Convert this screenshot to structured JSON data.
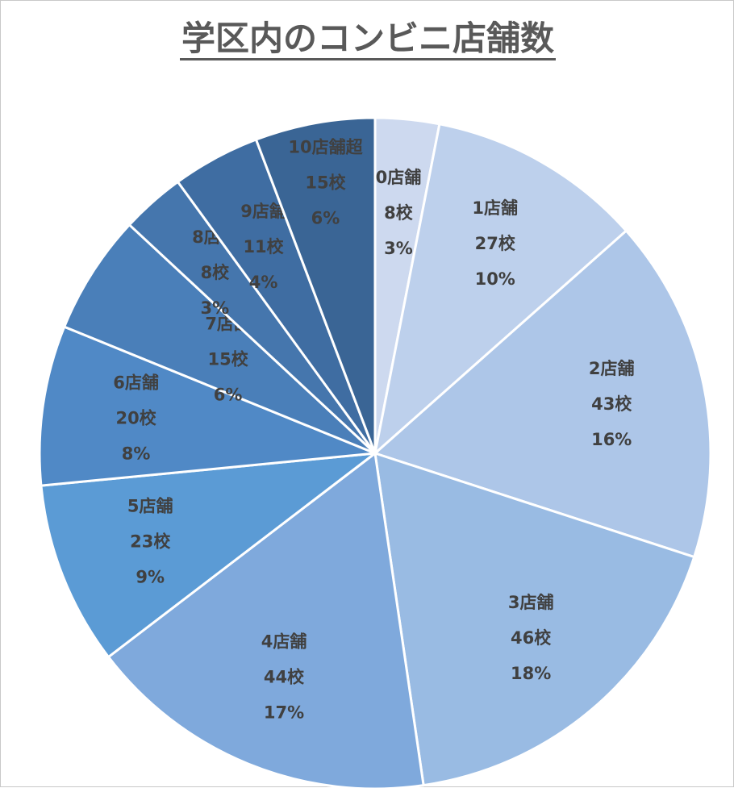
{
  "chart_data": {
    "type": "pie",
    "title": "学区内のコンビニ店舗数",
    "categories": [
      "0店舗",
      "1店舗",
      "2店舗",
      "3店舗",
      "4店舗",
      "5店舗",
      "6店舗",
      "7店舗",
      "8店舗",
      "9店舗",
      "10店舗超"
    ],
    "values": [
      8,
      27,
      43,
      46,
      44,
      23,
      20,
      15,
      8,
      11,
      15
    ],
    "value_labels": [
      "8校",
      "27校",
      "43校",
      "46校",
      "44校",
      "23校",
      "20校",
      "15校",
      "8校",
      "11校",
      "15校"
    ],
    "percent_labels": [
      "3%",
      "10%",
      "16%",
      "18%",
      "17%",
      "9%",
      "8%",
      "6%",
      "3%",
      "4%",
      "6%"
    ],
    "start_angle": "12 o'clock",
    "direction": "clockwise",
    "legend": "none",
    "colors": [
      "#cdd9ef",
      "#bdd0ec",
      "#adc6e8",
      "#99bbe3",
      "#7fa9dc",
      "#5b9bd5",
      "#5089c6",
      "#4a7fb9",
      "#4576ad",
      "#3f6da2",
      "#3a6595"
    ]
  }
}
